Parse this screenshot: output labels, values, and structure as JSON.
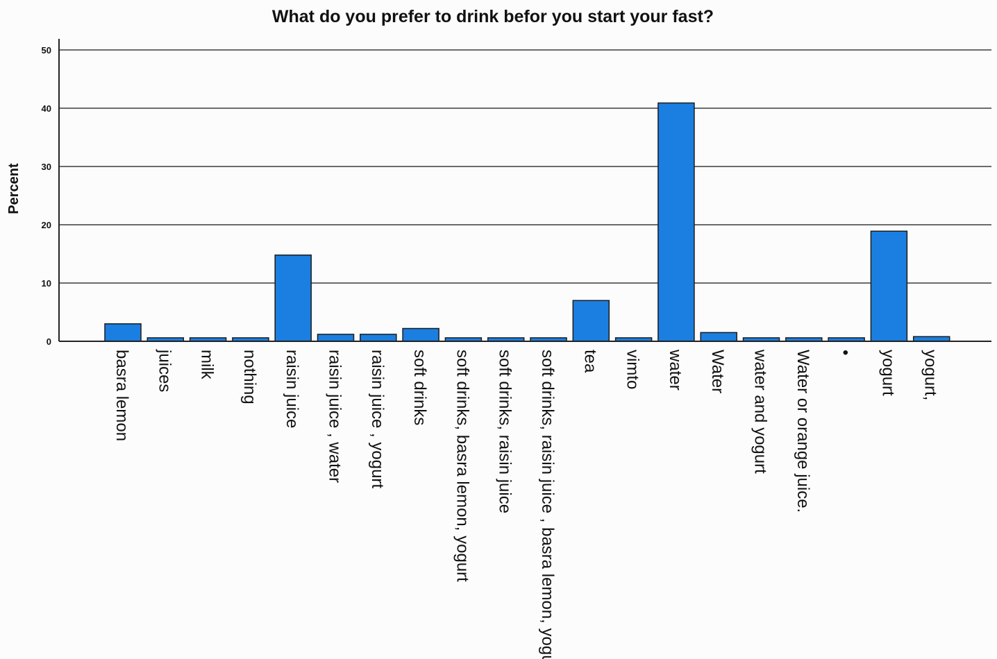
{
  "chart_data": {
    "type": "bar",
    "title": "What do you prefer to drink befor you start your fast?",
    "ylabel": "Percent",
    "xlabel": "",
    "ylim": [
      0,
      50
    ],
    "yticks": [
      0,
      10,
      20,
      30,
      40,
      50
    ],
    "grid": true,
    "bar_color": "#1a7fe0",
    "categories": [
      "basra lemon",
      "juices",
      "milk",
      "nothing",
      "raisin juice",
      "raisin juice , water",
      "raisin juice , yogurt",
      "soft drinks",
      "soft drinks, basra lemon, yogurt",
      "soft drinks, raisin juice",
      "soft drinks, raisin juice , basra lemon, yogurt",
      "tea",
      "vimto",
      "water",
      "Water",
      "water and yogurt",
      "Water or orange juice.",
      "•",
      "yogurt",
      "yogurt,"
    ],
    "values": [
      3.0,
      0.6,
      0.6,
      0.6,
      14.8,
      1.2,
      1.2,
      2.2,
      0.6,
      0.6,
      0.6,
      7.0,
      0.6,
      40.9,
      1.5,
      0.6,
      0.6,
      0.6,
      18.9,
      0.8
    ]
  }
}
